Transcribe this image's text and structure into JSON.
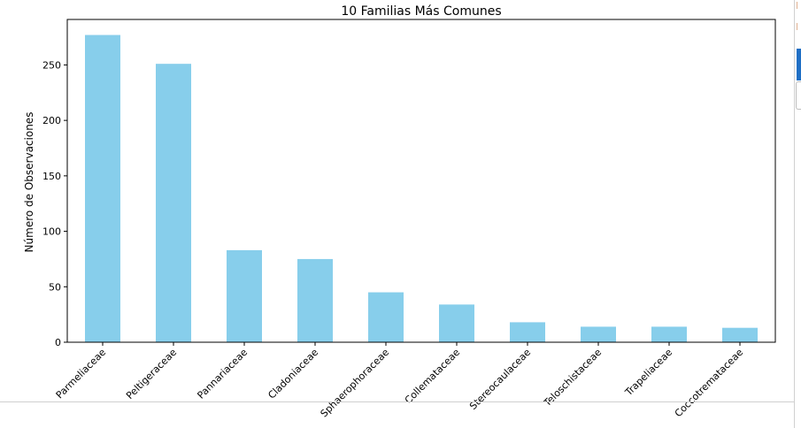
{
  "chart_data": {
    "type": "bar",
    "title": "10 Familias Más Comunes",
    "xlabel": "",
    "ylabel": "Número de Observaciones",
    "categories": [
      "Parmeliaceae",
      "Peltigeraceae",
      "Pannariaceae",
      "Cladoniaceae",
      "Sphaerophoraceae",
      "Collemataceae",
      "Stereocaulaceae",
      "Teloschistaceae",
      "Trapeliaceae",
      "Coccotremataceae"
    ],
    "values": [
      277,
      251,
      83,
      75,
      45,
      34,
      18,
      14,
      14,
      13
    ],
    "ylim": [
      0,
      291
    ],
    "yticks": [
      0,
      50,
      100,
      150,
      200,
      250
    ],
    "bar_color": "#87ceeb",
    "grid": false,
    "legend": "none"
  }
}
